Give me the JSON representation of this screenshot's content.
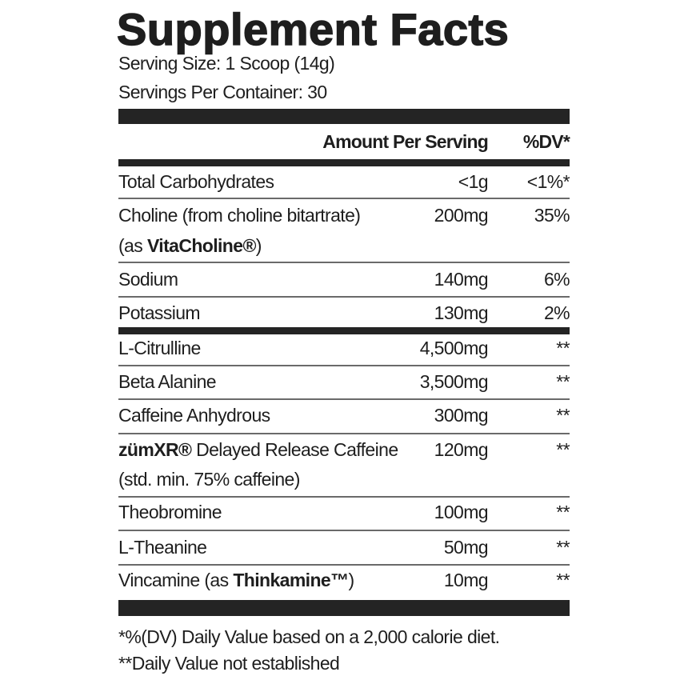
{
  "title": "Supplement Facts",
  "serving_size": "Serving Size: 1 Scoop (14g)",
  "servings_per_container": "Servings Per Container: 30",
  "header": {
    "amount": "Amount Per Serving",
    "dv": "%DV*"
  },
  "rows": [
    {
      "name": "Total Carbohydrates",
      "amount": "<1g",
      "dv": "<1%*"
    },
    {
      "name": "Choline (from choline bitartrate)",
      "name2_pre": "(as ",
      "name2_bold": "VitaCholine®",
      "name2_post": ")",
      "amount": "200mg",
      "dv": "35%"
    },
    {
      "name": "Sodium",
      "amount": "140mg",
      "dv": "6%"
    },
    {
      "name": "Potassium",
      "amount": "130mg",
      "dv": "2%"
    },
    {
      "name": "L-Citrulline",
      "amount": "4,500mg",
      "dv": "**"
    },
    {
      "name": "Beta Alanine",
      "amount": "3,500mg",
      "dv": "**"
    },
    {
      "name": "Caffeine Anhydrous",
      "amount": "300mg",
      "dv": "**"
    },
    {
      "name_bold": "zümXR®",
      "name": " Delayed Release Caffeine",
      "name2": "(std. min. 75% caffeine)",
      "amount": "120mg",
      "dv": "**"
    },
    {
      "name": "Theobromine",
      "amount": "100mg",
      "dv": "**"
    },
    {
      "name": "L-Theanine",
      "amount": "50mg",
      "dv": "**"
    },
    {
      "name": "Vincamine (as ",
      "name_bold": "Thinkamine™",
      "name_post": ")",
      "amount": "10mg",
      "dv": "**"
    }
  ],
  "footnotes": [
    "*%(DV) Daily Value based on a 2,000 calorie diet.",
    "**Daily Value not established"
  ]
}
